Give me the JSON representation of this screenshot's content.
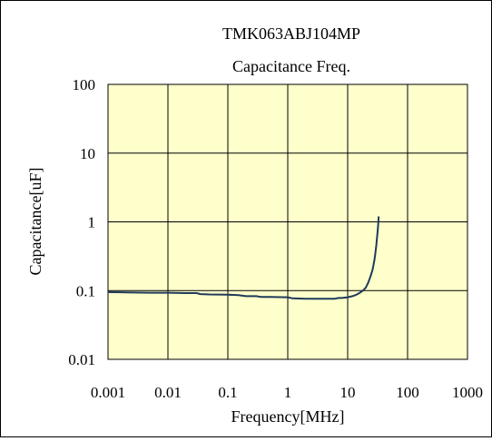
{
  "chart_data": {
    "type": "line",
    "title": "TMK063ABJ104MP",
    "subtitle": "Capacitance Freq.",
    "xlabel": "Frequency[MHz]",
    "ylabel": "Capacitance[uF]",
    "x_scale": "log",
    "y_scale": "log",
    "xlim": [
      0.001,
      1000
    ],
    "ylim": [
      0.01,
      100
    ],
    "x_ticks": [
      "0.001",
      "0.01",
      "0.1",
      "1",
      "10",
      "100",
      "1000"
    ],
    "y_ticks": [
      "100",
      "10",
      "1",
      "0.1",
      "0.01"
    ],
    "grid": true,
    "plot_background": "#ffffcc",
    "line_color": "#1f3a5a",
    "series": [
      {
        "x": [
          0.001,
          0.002,
          0.005,
          0.01,
          0.02,
          0.03,
          0.035,
          0.05,
          0.1,
          0.15,
          0.2,
          0.3,
          0.35,
          0.5,
          1,
          1.2,
          2,
          4,
          6,
          7,
          8,
          10,
          12,
          14,
          16,
          18,
          20,
          22,
          24,
          26,
          28,
          29,
          30,
          31,
          32,
          32.5,
          33
        ],
        "y": [
          0.095,
          0.094,
          0.093,
          0.093,
          0.092,
          0.092,
          0.089,
          0.088,
          0.087,
          0.086,
          0.083,
          0.083,
          0.081,
          0.081,
          0.08,
          0.077,
          0.076,
          0.076,
          0.076,
          0.078,
          0.078,
          0.08,
          0.083,
          0.087,
          0.093,
          0.1,
          0.11,
          0.13,
          0.16,
          0.2,
          0.28,
          0.35,
          0.45,
          0.6,
          0.8,
          1.0,
          1.2
        ]
      }
    ]
  }
}
